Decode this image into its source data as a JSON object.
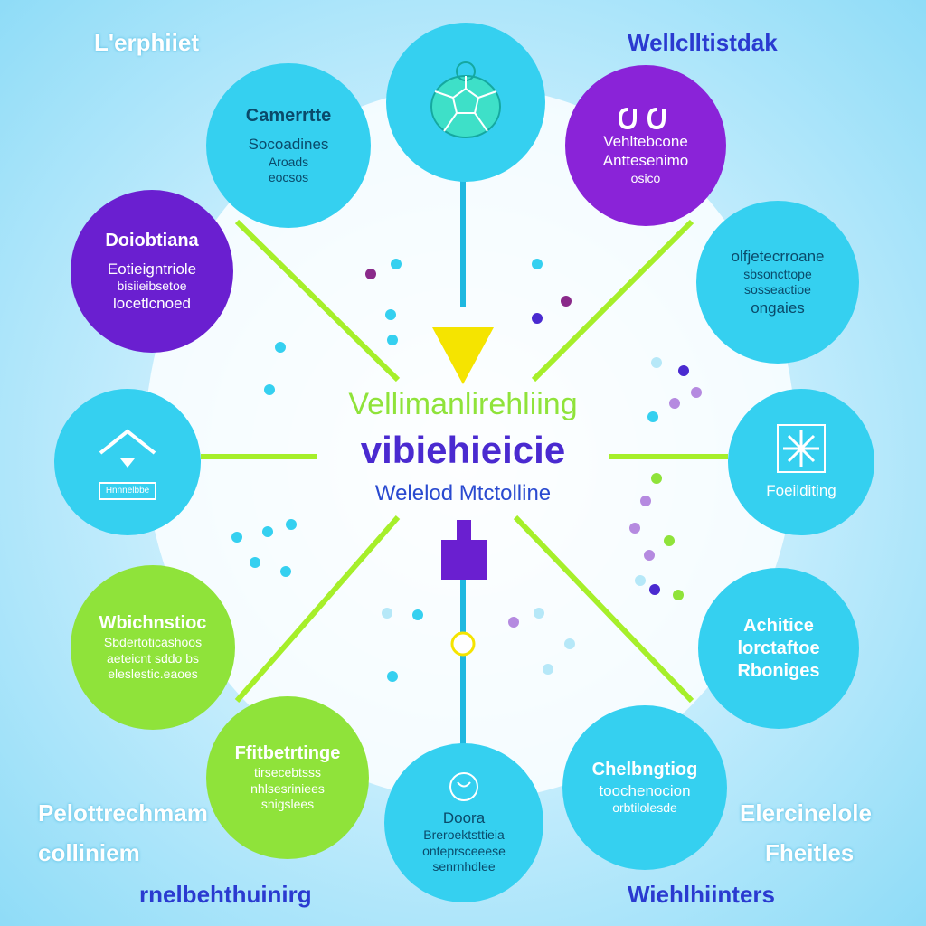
{
  "corners": {
    "top_left": "L'erphiiet",
    "top_right": "Wellclltistdak",
    "bottom_left_1": "Pelottrechmam",
    "bottom_left_2": "colliniem",
    "bottom_left_3": "rnelbehthuinirg",
    "bottom_right_1": "Elercinelole",
    "bottom_right_2": "Fheitles",
    "bottom_right_3": "Wiehlhiinters"
  },
  "center": {
    "title": "Vellimanlirehliing",
    "heading": "vibiehieicie",
    "subtitle": "Welelod Mtctolline"
  },
  "nodes": {
    "top_left": {
      "l1": "Camerrtte",
      "l2": "Socoadines",
      "l3": "Aroads",
      "l4": "eocsos"
    },
    "top_right": {
      "l1": "Vehltebcone",
      "l2": "Anttesenimo",
      "l3": "osico"
    },
    "right_upper": {
      "l1": "olfjetecrroane",
      "l2": "sbsoncttope",
      "l3": "sosseactioe",
      "l4": "ongaies"
    },
    "left_upper": {
      "l1": "Doiobtiana",
      "l2": "Eotieigntriole",
      "l3": "bisiieibsetoe",
      "l4": "locetlcnoed"
    },
    "left_middle": {
      "caption": "Hnnnelbbe"
    },
    "right_middle": {
      "caption": "Foeilditing"
    },
    "left_lower": {
      "l1": "Wbichnstioc",
      "l2": "Sbdertoticashoos",
      "l3": "aeteicnt sddo bs",
      "l4": "eleslestic.eaoes"
    },
    "right_lower": {
      "l1": "Achitice",
      "l2": "lorctaftoe",
      "l3": "Rboniges"
    },
    "bottom_left": {
      "l1": "Ffitbetrtinge",
      "l2": "tirsecebtsss",
      "l3": "nhlsesriniees",
      "l4": "snigslees"
    },
    "bottom_center": {
      "l1": "Doora",
      "l2": "Breroektsttieia",
      "l3": "onteprsceeese",
      "l4": "senrnhdlee"
    },
    "bottom_right": {
      "l1": "Chelbngtiog",
      "l2": "toochenocion",
      "l3": "orbtilolesde"
    }
  },
  "colors": {
    "cyan": "#35d0f0",
    "purple": "#6a1fd0",
    "violet": "#8a23d8",
    "lime": "#8fe33a",
    "arrow_yellow": "#f5e400",
    "connector_lime": "#a6ef2a",
    "connector_cyan": "#1fb8e0"
  },
  "icons": {
    "top_center": "turtle-icon",
    "top_right": "infinity-loop-icon",
    "left_middle": "house-roof-icon",
    "right_middle": "snowflake-icon",
    "bottom_center": "leaf-icon"
  }
}
